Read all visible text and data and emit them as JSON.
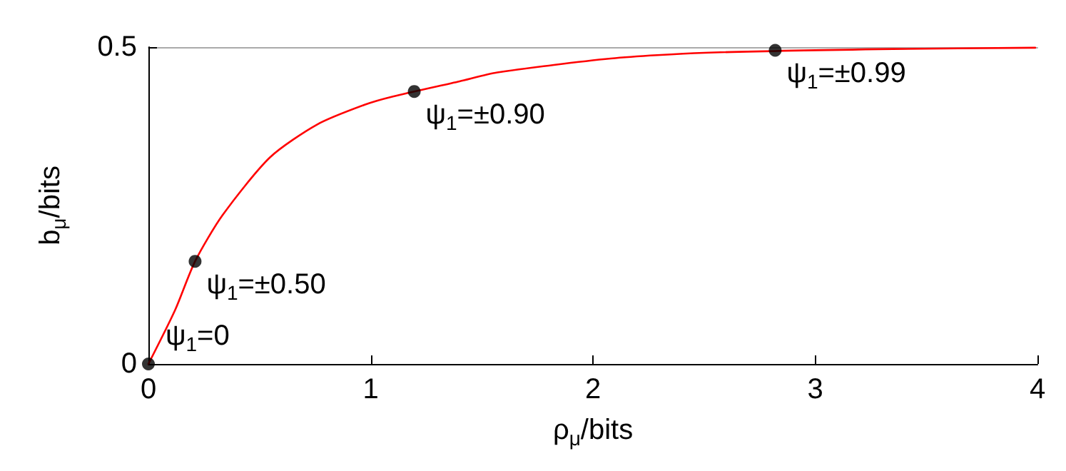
{
  "chart_data": {
    "type": "line",
    "xlabel": "ρ$_{μ}$/bits",
    "ylabel": "b$_{μ}$/bits",
    "xlim": [
      0,
      4
    ],
    "ylim": [
      0,
      0.5
    ],
    "xticks": [
      0,
      1,
      2,
      3,
      4
    ],
    "yticks": [
      0,
      0.5
    ],
    "grid": false,
    "marker": "none",
    "line_style": "solid",
    "series": [
      {
        "color": "#ff0000",
        "x": [
          0,
          0.12,
          0.21,
          0.334,
          0.547,
          0.76,
          0.973,
          1.1,
          1.4,
          1.57,
          2.08,
          2.5,
          3.35,
          3.99
        ],
        "values": [
          0,
          0.085,
          0.162,
          0.235,
          0.326,
          0.378,
          0.409,
          0.422,
          0.446,
          0.46,
          0.482,
          0.491,
          0.497,
          0.499
        ]
      },
      {
        "type": "scatter",
        "color": "#000000",
        "marker": "circle",
        "x": [
          0,
          0.21,
          1.196,
          2.82
        ],
        "values": [
          0,
          0.162,
          0.43,
          0.495
        ]
      }
    ],
    "annotations": [
      {
        "text": "ψ$_{1}$=0",
        "x": 0,
        "y": 0
      },
      {
        "text": "ψ$_{1}$=±0.50",
        "x": 0.21,
        "y": 0.162
      },
      {
        "text": "ψ$_{1}$=±0.90",
        "x": 1.196,
        "y": 0.43
      },
      {
        "text": "ψ$_{1}$=±0.99",
        "x": 2.82,
        "y": 0.495
      }
    ]
  }
}
